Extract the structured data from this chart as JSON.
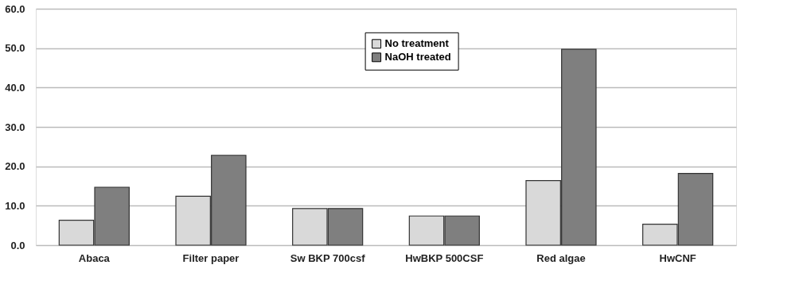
{
  "chart_data": {
    "type": "bar",
    "categories": [
      "Abaca",
      "Filter paper",
      "Sw BKP 700csf",
      "HwBKP 500CSF",
      "Red algae",
      "HwCNF"
    ],
    "series": [
      {
        "name": "No treatment",
        "color": "#d9d9d9",
        "values": [
          6.3,
          12.4,
          9.3,
          7.4,
          16.4,
          5.3
        ]
      },
      {
        "name": "NaOH treated",
        "color": "#7f7f7f",
        "values": [
          14.7,
          22.8,
          9.3,
          7.4,
          49.7,
          18.2
        ]
      }
    ],
    "ylim": [
      0,
      60
    ],
    "yticks": [
      {
        "value": 0,
        "label": "0.0"
      },
      {
        "value": 10,
        "label": "10.0"
      },
      {
        "value": 20,
        "label": "20.0"
      },
      {
        "value": 30,
        "label": "30.0"
      },
      {
        "value": 40,
        "label": "40.0"
      },
      {
        "value": 50,
        "label": "50.0"
      },
      {
        "value": 60,
        "label": "60.0"
      }
    ],
    "grid": "y",
    "legend": "top"
  }
}
